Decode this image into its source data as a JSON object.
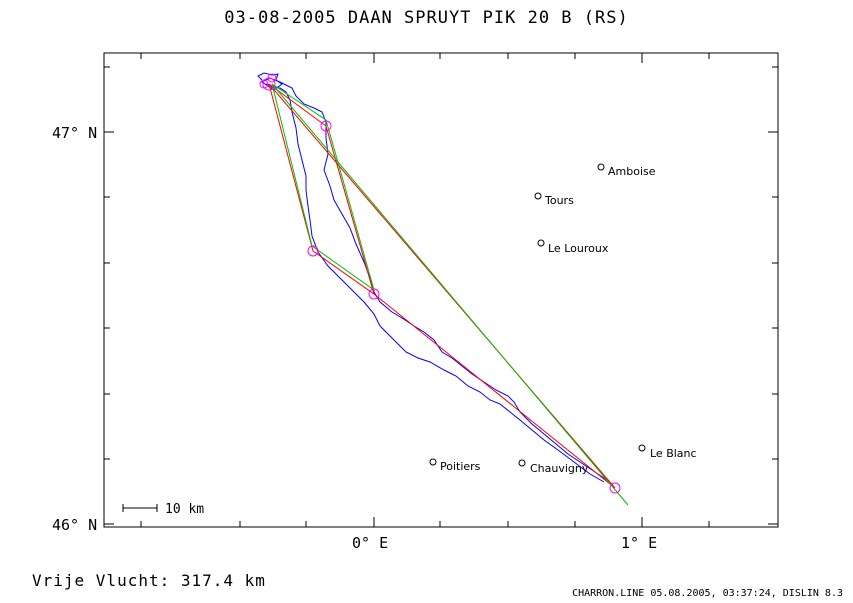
{
  "title": "03-08-2005   DAAN SPRUYT   PIK 20 B (RS)",
  "y_axis_labels": [
    "47° N",
    "46° N"
  ],
  "x_axis_labels": [
    "0° E",
    "1° E"
  ],
  "scale_label": "10 km",
  "distance_text": "Vrije Vlucht:  317.4 km",
  "footer_text": "CHARRON.LINE 05.08.2005, 03:37:24, DISLIN 8.3",
  "towns": [
    "Amboise",
    "Tours",
    "Le Louroux",
    "Poitiers",
    "Chauvigny",
    "Le Blanc"
  ],
  "colors": {
    "track": "#0000ff",
    "route_red": "#ff0000",
    "route_green": "#00c000",
    "turnpoint": "#ff00ff"
  }
}
